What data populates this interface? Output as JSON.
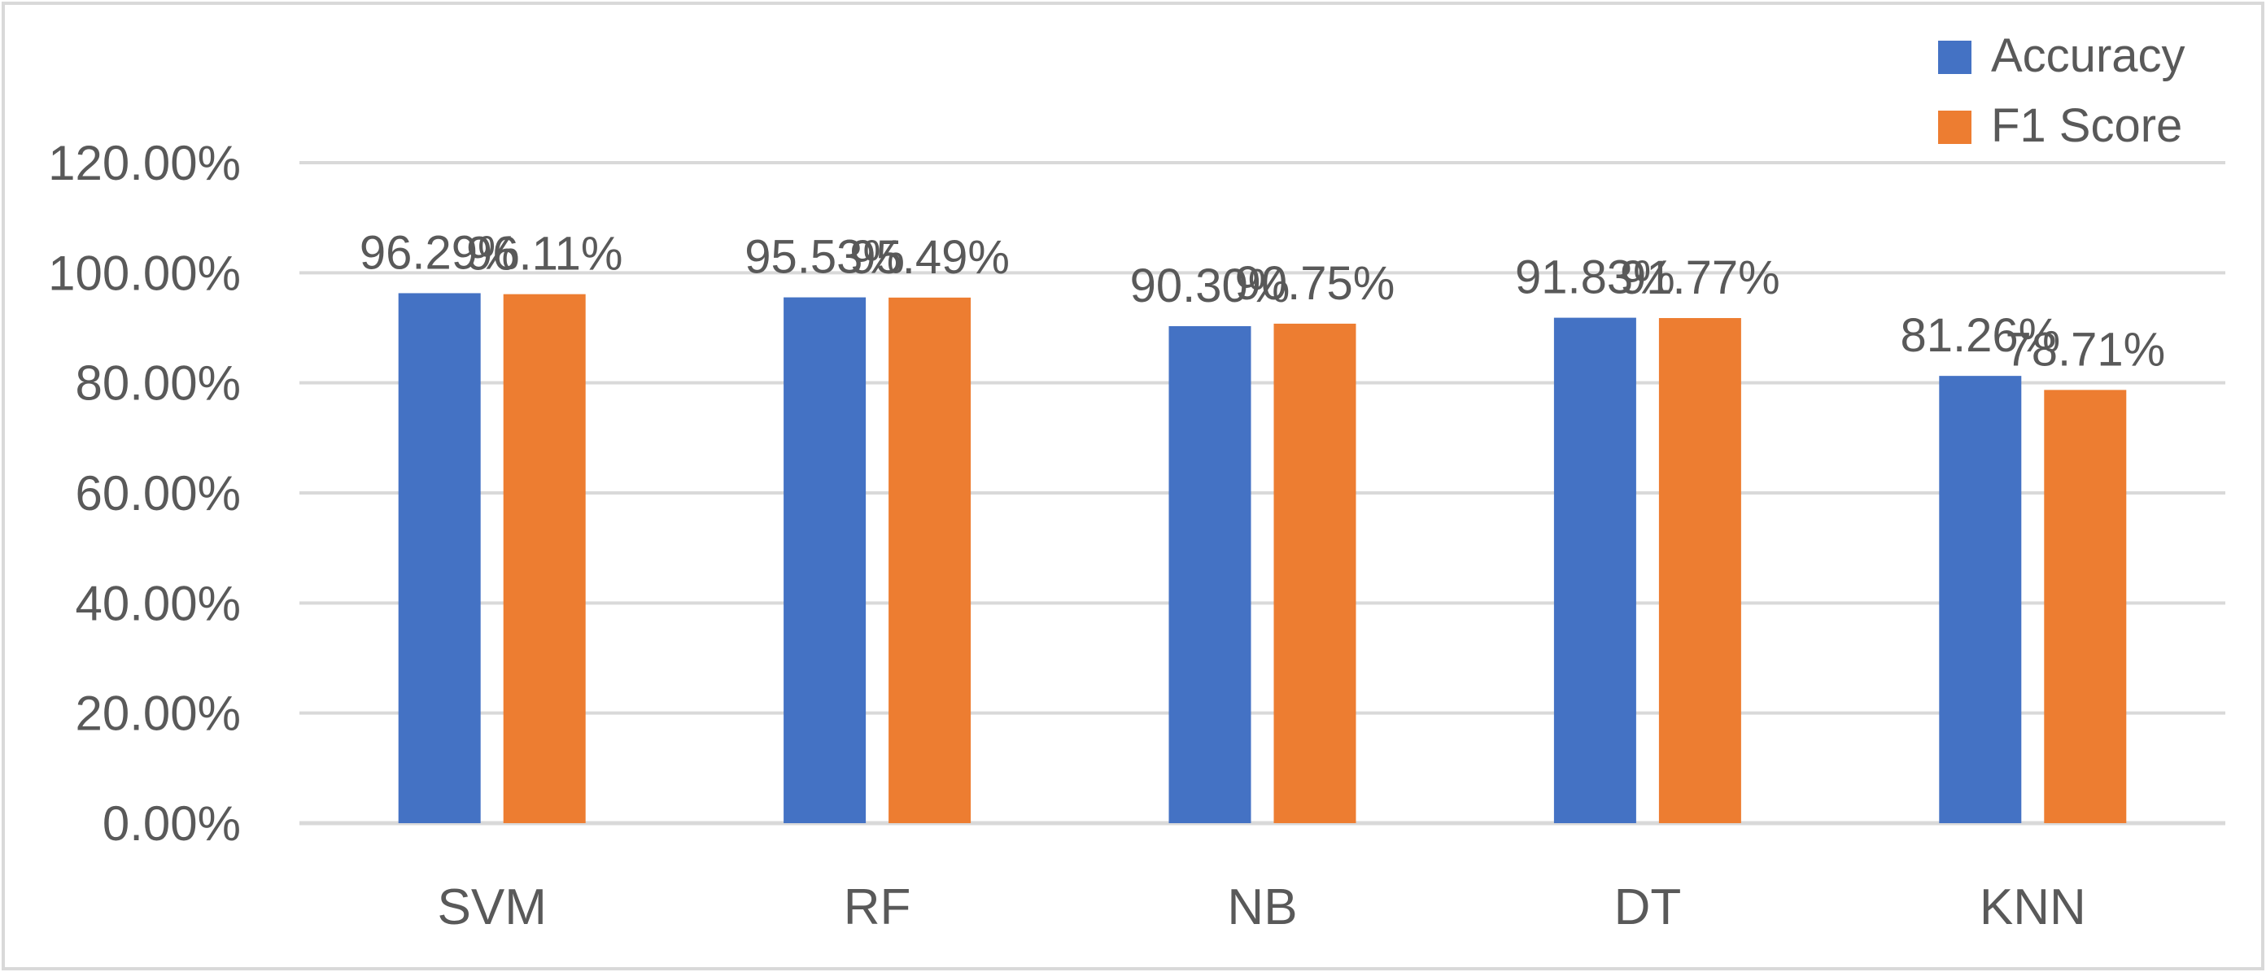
{
  "chart_data": {
    "type": "bar",
    "title": "",
    "xlabel": "",
    "ylabel": "",
    "categories": [
      "SVM",
      "RF",
      "NB",
      "DT",
      "KNN"
    ],
    "series": [
      {
        "name": "Accuracy",
        "color": "#4472C4",
        "values": [
          96.29,
          95.53,
          90.3,
          91.83,
          81.26
        ],
        "labels": [
          "96.29%",
          "95.53%",
          "90.30%",
          "91.83%",
          "81.26%"
        ]
      },
      {
        "name": "F1 Score",
        "color": "#ED7D31",
        "values": [
          96.11,
          95.49,
          90.75,
          91.77,
          78.71
        ],
        "labels": [
          "96.11%",
          "95.49%",
          "90.75%",
          "91.77%",
          "78.71%"
        ]
      }
    ],
    "ylim": [
      0,
      120
    ],
    "yticks": [
      0,
      20,
      40,
      60,
      80,
      100,
      120
    ],
    "ytick_labels": [
      "0.00%",
      "20.00%",
      "40.00%",
      "60.00%",
      "80.00%",
      "100.00%",
      "120.00%"
    ],
    "grid": true,
    "legend_position": "top-right"
  }
}
